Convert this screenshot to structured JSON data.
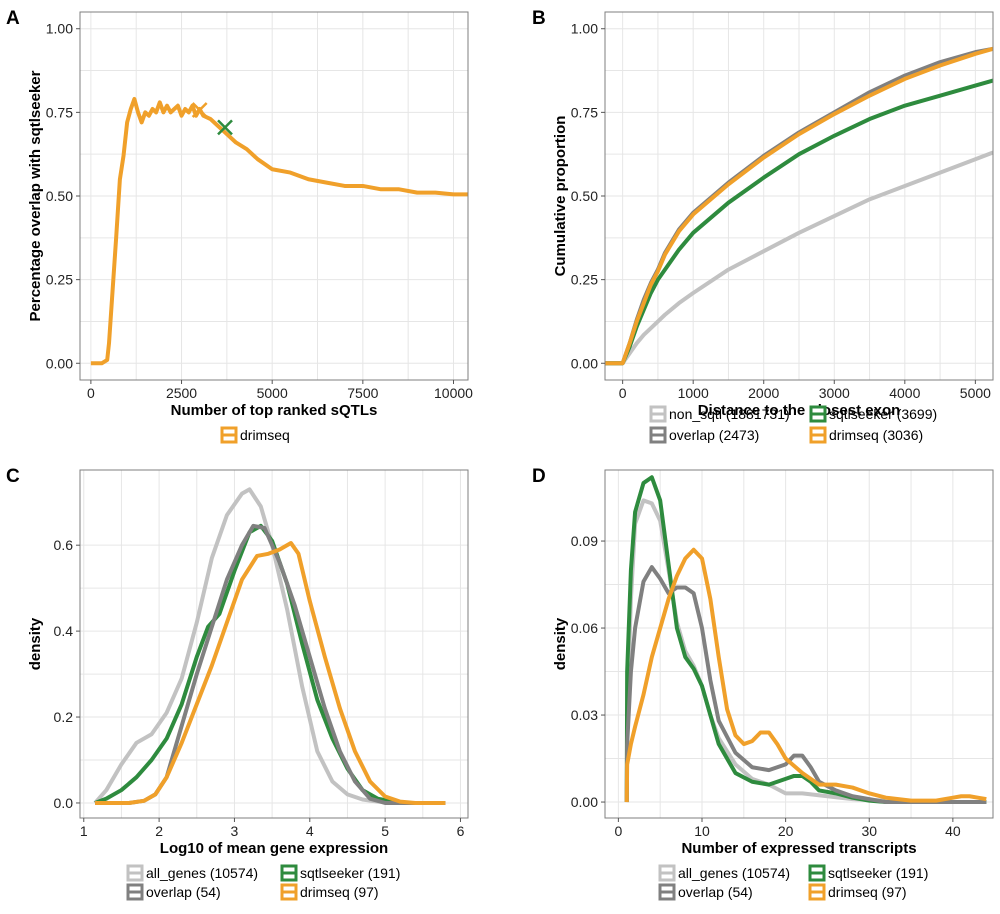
{
  "colors": {
    "all": "#c2c2c2",
    "overlap": "#808080",
    "sqtlseeker": "#2e8b3e",
    "drimseq": "#f0a02a"
  },
  "chart_data": [
    {
      "panel": "A",
      "type": "line",
      "xlabel": "Number of top ranked sQTLs",
      "ylabel": "Percentage overlap with sqtlseeker",
      "xlim": [
        -300,
        10400
      ],
      "ylim": [
        -0.05,
        1.05
      ],
      "xticks": [
        0,
        2500,
        5000,
        7500,
        10000
      ],
      "yticks": [
        0.0,
        0.25,
        0.5,
        0.75,
        1.0
      ],
      "ytick_labels": [
        "0.00",
        "0.25",
        "0.50",
        "0.75",
        "1.00"
      ],
      "grid": true,
      "legend_position": "bottom",
      "series": [
        {
          "name": "drimseq",
          "color_key": "drimseq",
          "x": [
            0,
            150,
            300,
            450,
            500,
            600,
            700,
            800,
            900,
            1000,
            1100,
            1200,
            1300,
            1400,
            1500,
            1600,
            1700,
            1800,
            1900,
            2000,
            2100,
            2200,
            2300,
            2400,
            2500,
            2600,
            2700,
            2800,
            2900,
            3000,
            3100,
            3300,
            3500,
            3700,
            4000,
            4300,
            4600,
            5000,
            5500,
            6000,
            6500,
            7000,
            7500,
            8000,
            8500,
            9000,
            9500,
            10000,
            10400
          ],
          "y": [
            0,
            0,
            0,
            0.01,
            0.06,
            0.22,
            0.38,
            0.55,
            0.62,
            0.72,
            0.76,
            0.79,
            0.75,
            0.72,
            0.75,
            0.74,
            0.76,
            0.75,
            0.78,
            0.75,
            0.77,
            0.75,
            0.76,
            0.77,
            0.74,
            0.76,
            0.75,
            0.77,
            0.74,
            0.76,
            0.74,
            0.73,
            0.71,
            0.69,
            0.66,
            0.64,
            0.61,
            0.58,
            0.57,
            0.55,
            0.54,
            0.53,
            0.53,
            0.52,
            0.52,
            0.51,
            0.51,
            0.505,
            0.505
          ]
        }
      ],
      "markers": [
        {
          "type": "x",
          "color_key": "drimseq",
          "x": 3000,
          "y": 0.757
        },
        {
          "type": "x",
          "color_key": "sqtlseeker",
          "x": 3699,
          "y": 0.705
        }
      ]
    },
    {
      "panel": "B",
      "type": "line",
      "xlabel": "Distance to the closest exon",
      "ylabel": "Cumulative proportion",
      "xlim": [
        -250,
        5250
      ],
      "ylim": [
        -0.05,
        1.05
      ],
      "xticks": [
        0,
        1000,
        2000,
        3000,
        4000,
        5000
      ],
      "yticks": [
        0.0,
        0.25,
        0.5,
        0.75,
        1.0
      ],
      "ytick_labels": [
        "0.00",
        "0.25",
        "0.50",
        "0.75",
        "1.00"
      ],
      "grid": true,
      "legend_position": "bottom",
      "series": [
        {
          "name": "non_sqtl (1881731)",
          "color_key": "all",
          "x": [
            -250,
            -5,
            0,
            100,
            200,
            300,
            400,
            600,
            800,
            1000,
            1500,
            2000,
            2500,
            3000,
            3500,
            4000,
            4500,
            5000,
            5250
          ],
          "y": [
            0,
            0,
            0,
            0.03,
            0.06,
            0.085,
            0.105,
            0.145,
            0.18,
            0.21,
            0.28,
            0.335,
            0.39,
            0.44,
            0.49,
            0.53,
            0.57,
            0.61,
            0.63
          ]
        },
        {
          "name": "overlap (2473)",
          "color_key": "overlap",
          "x": [
            -250,
            -5,
            0,
            100,
            200,
            300,
            400,
            500,
            600,
            800,
            1000,
            1500,
            2000,
            2500,
            3000,
            3500,
            4000,
            4500,
            5000,
            5250
          ],
          "y": [
            0,
            0,
            0,
            0.06,
            0.13,
            0.19,
            0.24,
            0.28,
            0.33,
            0.4,
            0.45,
            0.54,
            0.62,
            0.69,
            0.75,
            0.81,
            0.86,
            0.9,
            0.93,
            0.94
          ]
        },
        {
          "name": "sqtlseeker (3699)",
          "color_key": "sqtlseeker",
          "x": [
            -250,
            -5,
            0,
            100,
            200,
            300,
            400,
            500,
            600,
            800,
            1000,
            1500,
            2000,
            2500,
            3000,
            3500,
            4000,
            4500,
            5000,
            5250
          ],
          "y": [
            0,
            0,
            0,
            0.05,
            0.11,
            0.16,
            0.21,
            0.25,
            0.28,
            0.34,
            0.39,
            0.48,
            0.555,
            0.625,
            0.68,
            0.73,
            0.77,
            0.8,
            0.83,
            0.845
          ]
        },
        {
          "name": "drimseq (3036)",
          "color_key": "drimseq",
          "x": [
            -250,
            -5,
            0,
            100,
            200,
            300,
            400,
            500,
            600,
            800,
            1000,
            1500,
            2000,
            2500,
            3000,
            3500,
            4000,
            4500,
            5000,
            5250
          ],
          "y": [
            0,
            0,
            0,
            0.06,
            0.125,
            0.18,
            0.235,
            0.275,
            0.325,
            0.395,
            0.445,
            0.535,
            0.615,
            0.685,
            0.745,
            0.8,
            0.85,
            0.89,
            0.925,
            0.94
          ]
        }
      ]
    },
    {
      "panel": "C",
      "type": "line",
      "xlabel": "Log10 of mean gene expression",
      "ylabel": "density",
      "xlim": [
        0.95,
        6.1
      ],
      "ylim": [
        -0.035,
        0.775
      ],
      "xticks": [
        1,
        2,
        3,
        4,
        5,
        6
      ],
      "yticks": [
        0.0,
        0.2,
        0.4,
        0.6
      ],
      "ytick_labels": [
        "0.0",
        "0.2",
        "0.4",
        "0.6"
      ],
      "grid": true,
      "legend_position": "bottom",
      "series": [
        {
          "name": "all_genes (10574)",
          "color_key": "all",
          "x": [
            1.15,
            1.3,
            1.5,
            1.7,
            1.9,
            2.1,
            2.3,
            2.5,
            2.7,
            2.9,
            3.1,
            3.2,
            3.35,
            3.5,
            3.7,
            3.9,
            4.1,
            4.3,
            4.5,
            4.7,
            4.9,
            5.1,
            5.3,
            5.5,
            5.8
          ],
          "y": [
            0,
            0.03,
            0.09,
            0.14,
            0.16,
            0.21,
            0.29,
            0.42,
            0.57,
            0.67,
            0.72,
            0.73,
            0.69,
            0.6,
            0.45,
            0.27,
            0.12,
            0.05,
            0.02,
            0.008,
            0.003,
            0.001,
            0,
            0,
            0
          ]
        },
        {
          "name": "sqtlseeker (191)",
          "color_key": "sqtlseeker",
          "x": [
            1.15,
            1.3,
            1.5,
            1.7,
            1.9,
            2.1,
            2.3,
            2.5,
            2.65,
            2.8,
            3.0,
            3.2,
            3.35,
            3.5,
            3.7,
            3.9,
            4.1,
            4.3,
            4.5,
            4.7,
            4.9,
            5.1,
            5.3,
            5.8
          ],
          "y": [
            0,
            0.01,
            0.03,
            0.06,
            0.1,
            0.15,
            0.23,
            0.34,
            0.41,
            0.44,
            0.54,
            0.63,
            0.645,
            0.61,
            0.51,
            0.37,
            0.24,
            0.15,
            0.08,
            0.03,
            0.01,
            0.003,
            0,
            0
          ]
        },
        {
          "name": "overlap (54)",
          "color_key": "overlap",
          "x": [
            1.15,
            1.6,
            1.8,
            1.95,
            2.1,
            2.3,
            2.5,
            2.7,
            2.9,
            3.1,
            3.25,
            3.4,
            3.6,
            3.8,
            4.0,
            4.2,
            4.4,
            4.6,
            4.8,
            5.0,
            5.2,
            5.8
          ],
          "y": [
            0,
            0,
            0.005,
            0.02,
            0.06,
            0.18,
            0.3,
            0.41,
            0.52,
            0.6,
            0.645,
            0.64,
            0.56,
            0.46,
            0.34,
            0.22,
            0.12,
            0.05,
            0.01,
            0,
            0,
            0
          ]
        },
        {
          "name": "drimseq (97)",
          "color_key": "drimseq",
          "x": [
            1.15,
            1.6,
            1.8,
            1.95,
            2.1,
            2.3,
            2.5,
            2.7,
            2.9,
            3.1,
            3.3,
            3.45,
            3.6,
            3.75,
            3.85,
            4.0,
            4.2,
            4.4,
            4.6,
            4.8,
            5.0,
            5.2,
            5.4,
            5.8
          ],
          "y": [
            0,
            0,
            0.005,
            0.02,
            0.06,
            0.14,
            0.23,
            0.32,
            0.42,
            0.52,
            0.575,
            0.58,
            0.59,
            0.605,
            0.58,
            0.47,
            0.34,
            0.22,
            0.12,
            0.05,
            0.015,
            0.003,
            0,
            0
          ]
        }
      ]
    },
    {
      "panel": "D",
      "type": "line",
      "xlabel": "Number of expressed transcripts",
      "ylabel": "density",
      "xlim": [
        -1.6,
        44.8
      ],
      "ylim": [
        -0.0055,
        0.1145
      ],
      "xticks": [
        0,
        10,
        20,
        30,
        40
      ],
      "yticks": [
        0.0,
        0.03,
        0.06,
        0.09
      ],
      "ytick_labels": [
        "0.00",
        "0.03",
        "0.06",
        "0.09"
      ],
      "grid": true,
      "legend_position": "bottom",
      "series": [
        {
          "name": "all_genes (10574)",
          "color_key": "all",
          "x": [
            1,
            1.05,
            1.5,
            2,
            3,
            4,
            5,
            6,
            7,
            8,
            9,
            10,
            11,
            12,
            14,
            16,
            18,
            20,
            22,
            25,
            28,
            32,
            36,
            44
          ],
          "y": [
            0,
            0.03,
            0.07,
            0.096,
            0.104,
            0.103,
            0.097,
            0.08,
            0.062,
            0.052,
            0.047,
            0.04,
            0.03,
            0.022,
            0.013,
            0.008,
            0.006,
            0.003,
            0.003,
            0.002,
            0.001,
            0.0005,
            0,
            0
          ]
        },
        {
          "name": "sqtlseeker (191)",
          "color_key": "sqtlseeker",
          "x": [
            1,
            1.05,
            1.5,
            2,
            3,
            4,
            5,
            6,
            7,
            8,
            9,
            10,
            11,
            12,
            14,
            16,
            18,
            20,
            21,
            22,
            23,
            24,
            26,
            28,
            30,
            32,
            44
          ],
          "y": [
            0,
            0.045,
            0.08,
            0.1,
            0.11,
            0.112,
            0.104,
            0.082,
            0.06,
            0.05,
            0.046,
            0.04,
            0.03,
            0.02,
            0.01,
            0.007,
            0.006,
            0.008,
            0.009,
            0.009,
            0.007,
            0.004,
            0.003,
            0.0015,
            0.0005,
            0,
            0
          ]
        },
        {
          "name": "overlap (54)",
          "color_key": "overlap",
          "x": [
            1,
            1.05,
            1.5,
            2,
            3,
            4,
            5,
            6,
            7,
            8,
            9,
            10,
            11,
            12,
            14,
            16,
            18,
            20,
            21,
            22,
            23,
            24,
            26,
            28,
            30,
            32,
            44
          ],
          "y": [
            0,
            0.02,
            0.045,
            0.06,
            0.076,
            0.081,
            0.077,
            0.072,
            0.074,
            0.074,
            0.072,
            0.06,
            0.042,
            0.028,
            0.017,
            0.012,
            0.011,
            0.013,
            0.016,
            0.016,
            0.012,
            0.007,
            0.004,
            0.002,
            0.001,
            0,
            0
          ]
        },
        {
          "name": "drimseq (97)",
          "color_key": "drimseq",
          "x": [
            1,
            1.05,
            1.5,
            2,
            3,
            4,
            5,
            6,
            7,
            8,
            9,
            10,
            11,
            12,
            13,
            14,
            15,
            16,
            17,
            18,
            19,
            20,
            22,
            24,
            26,
            28,
            30,
            32,
            35,
            38,
            40,
            41,
            42,
            43,
            44
          ],
          "y": [
            0,
            0.013,
            0.02,
            0.026,
            0.037,
            0.05,
            0.06,
            0.07,
            0.078,
            0.084,
            0.087,
            0.084,
            0.07,
            0.05,
            0.032,
            0.023,
            0.02,
            0.021,
            0.024,
            0.024,
            0.02,
            0.015,
            0.01,
            0.006,
            0.006,
            0.005,
            0.003,
            0.0015,
            0.0005,
            0.0005,
            0.0015,
            0.002,
            0.002,
            0.0015,
            0.001
          ]
        }
      ]
    }
  ]
}
